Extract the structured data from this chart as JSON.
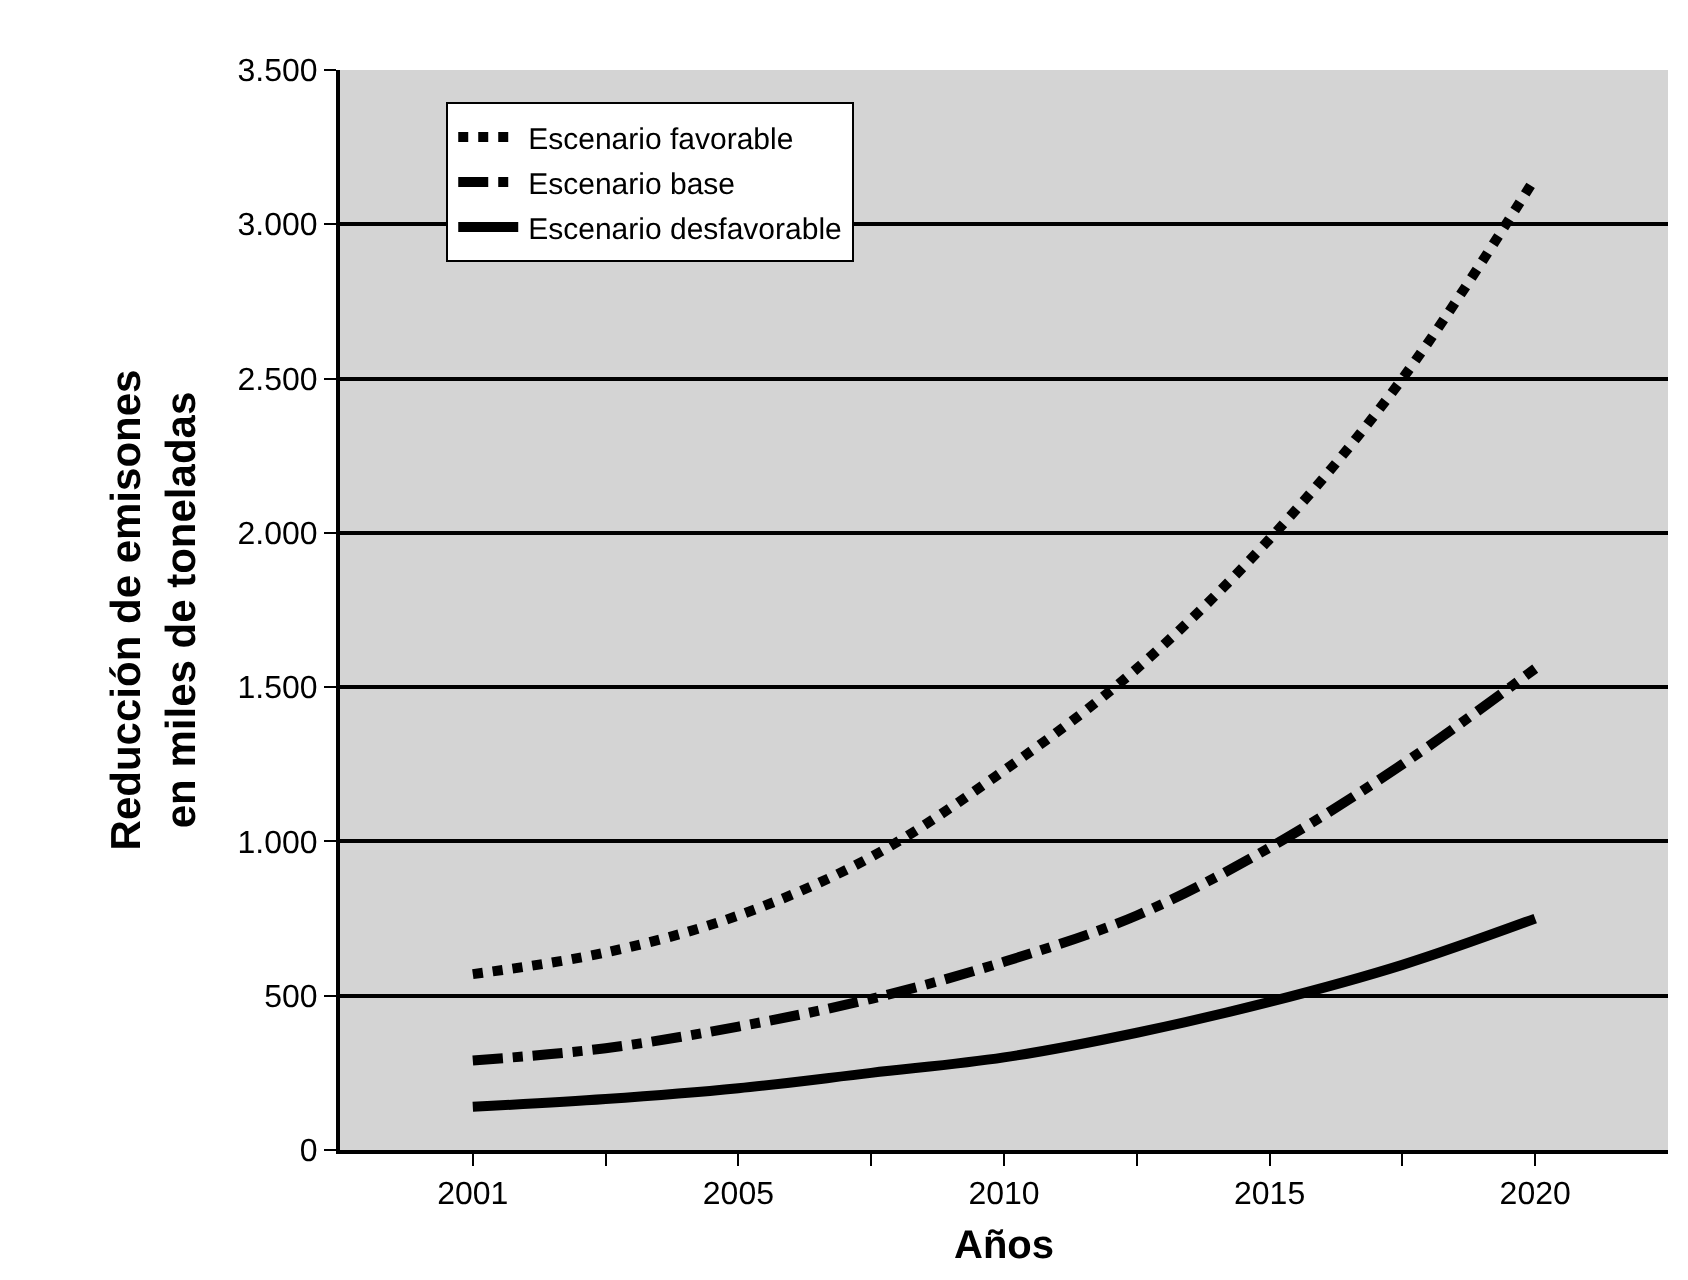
{
  "chart_data": {
    "type": "line",
    "xlabel": "Años",
    "ylabel": "Reducción de emisones\nen miles de toneladas",
    "categories": [
      "2001",
      null,
      "2005",
      null,
      "2010",
      null,
      "2015",
      null,
      "2020"
    ],
    "ylim": [
      0,
      3500
    ],
    "yticks": [
      0,
      {
        "value": 500,
        "label": "500"
      },
      {
        "value": 1000,
        "label": "1.000"
      },
      {
        "value": 1500,
        "label": "1.500"
      },
      {
        "value": 2000,
        "label": "2.000"
      },
      {
        "value": 2500,
        "label": "2.500"
      },
      {
        "value": 3000,
        "label": "3.000"
      },
      {
        "value": 3500,
        "label": "3.500"
      }
    ],
    "grid": "y",
    "legend": "top left",
    "marker": "none",
    "series": [
      {
        "name": "Escenario favorable",
        "color": "#000000",
        "line_style": "dotted",
        "values": [
          570,
          640,
          760,
          950,
          1230,
          1560,
          1980,
          2500,
          3150
        ]
      },
      {
        "name": "Escenario base",
        "color": "#000000",
        "line_style": "dashdot",
        "values": [
          290,
          330,
          400,
          490,
          610,
          760,
          980,
          1250,
          1560
        ]
      },
      {
        "name": "Escenario desfavorable",
        "color": "#000000",
        "line_style": "solid",
        "values": [
          140,
          165,
          200,
          250,
          300,
          380,
          480,
          600,
          750
        ]
      }
    ]
  }
}
